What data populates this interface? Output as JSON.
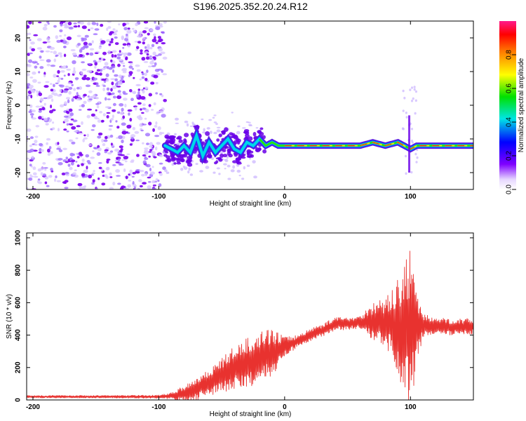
{
  "title": "S196.2025.352.20.24.R12",
  "chart_data": [
    {
      "type": "heatmap",
      "name": "spectrogram",
      "xlabel": "Height of straight line (km)",
      "ylabel": "Frequency (Hz)",
      "xlim": [
        -205,
        150
      ],
      "ylim": [
        -25,
        25
      ],
      "xticks": [
        -200,
        -100,
        0,
        100
      ],
      "yticks": [
        20,
        10,
        0,
        -10,
        -20
      ],
      "noise_region_x": [
        -205,
        -95
      ],
      "signal_track": {
        "x": [
          -95,
          -90,
          -85,
          -80,
          -75,
          -70,
          -65,
          -60,
          -55,
          -50,
          -45,
          -40,
          -35,
          -30,
          -25,
          -20,
          -15,
          -10,
          -5,
          0,
          10,
          20,
          30,
          40,
          50,
          60,
          70,
          80,
          90,
          95,
          100,
          105,
          110,
          120,
          130,
          140,
          150
        ],
        "y": [
          -12,
          -13,
          -14,
          -12,
          -14,
          -9,
          -15,
          -11,
          -14,
          -12,
          -10,
          -13,
          -14,
          -11,
          -12,
          -10,
          -12,
          -11,
          -12,
          -12,
          -12,
          -12,
          -12,
          -12,
          -12,
          -12,
          -11,
          -12,
          -11,
          -12,
          -13,
          -12,
          -12,
          -12,
          -12,
          -12,
          -12
        ]
      },
      "colorbar": {
        "label": "Normalized spectral amplitude",
        "range": [
          0,
          1
        ],
        "ticks": [
          0.0,
          0.2,
          0.4,
          0.6,
          0.8
        ],
        "tick_labels": [
          "0.0",
          "0.2",
          "0.4",
          "0.6",
          "0.8"
        ]
      }
    },
    {
      "type": "line",
      "name": "snr",
      "xlabel": "Height of straight line (km)",
      "ylabel": "SNR (10 * v/v)",
      "xlim": [
        -205,
        150
      ],
      "ylim": [
        0,
        1030
      ],
      "xticks": [
        -200,
        -100,
        0,
        100
      ],
      "yticks": [
        0,
        200,
        400,
        600,
        800,
        1000
      ],
      "color": "#e8322f",
      "envelope": {
        "x": [
          -205,
          -150,
          -100,
          -90,
          -85,
          -80,
          -70,
          -60,
          -50,
          -40,
          -30,
          -20,
          -10,
          0,
          10,
          20,
          30,
          40,
          50,
          60,
          70,
          80,
          85,
          90,
          95,
          100,
          105,
          110,
          120,
          130,
          140,
          150
        ],
        "base": [
          20,
          20,
          20,
          25,
          30,
          40,
          70,
          110,
          150,
          200,
          230,
          260,
          290,
          330,
          360,
          400,
          430,
          470,
          470,
          480,
          480,
          480,
          470,
          450,
          440,
          430,
          450,
          460,
          460,
          450,
          450,
          455
        ],
        "amplitude": [
          8,
          8,
          10,
          20,
          40,
          50,
          70,
          80,
          110,
          130,
          150,
          160,
          150,
          60,
          40,
          40,
          40,
          40,
          40,
          40,
          120,
          150,
          200,
          300,
          400,
          500,
          250,
          70,
          50,
          50,
          50,
          50
        ]
      }
    }
  ]
}
